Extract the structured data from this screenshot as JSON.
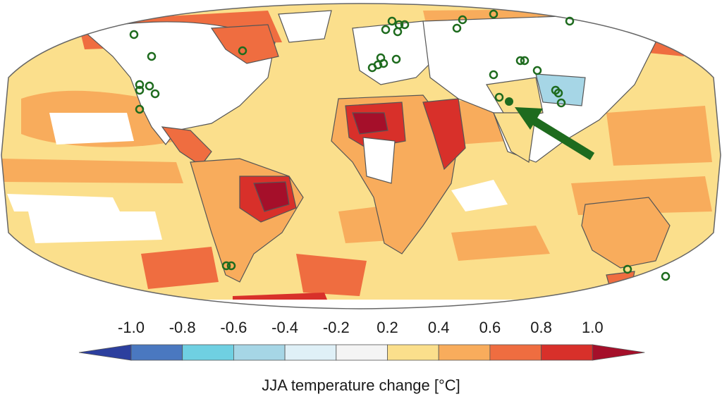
{
  "colorbar": {
    "ticks": [
      "-1.0",
      "-0.8",
      "-0.6",
      "-0.4",
      "-0.2",
      "0.2",
      "0.4",
      "0.6",
      "0.8",
      "1.0"
    ],
    "colors": [
      "#2c3f9e",
      "#4a78c0",
      "#6fd0e2",
      "#a6d6e6",
      "#dff0f7",
      "#f4f4f4",
      "#fbdf8c",
      "#f8ac5c",
      "#ef6d40",
      "#d8302a",
      "#a50f2a"
    ],
    "title": "JJA temperature change [°C]"
  },
  "map": {
    "ocean_base_color": "#fbdf8c",
    "land_outline_color": "#555555",
    "marker_color": "#1e6b1e",
    "highlighted_site": "filled marker with arrow pointing to it (Himalaya region)"
  }
}
